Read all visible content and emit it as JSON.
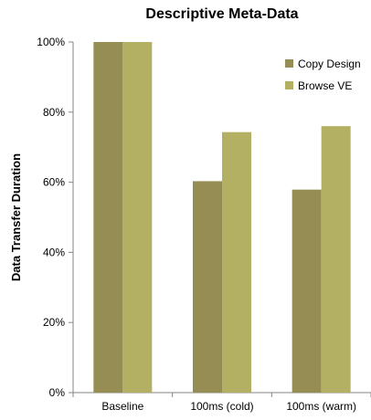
{
  "chart_data": {
    "type": "bar",
    "title": "Descriptive Meta-Data",
    "xlabel": "",
    "ylabel": "Data Transfer Duration",
    "categories": [
      "Baseline",
      "100ms (cold)",
      "100ms (warm)"
    ],
    "series": [
      {
        "name": "Copy Design",
        "color": "#968d55",
        "values": [
          100,
          60.3,
          57.9
        ]
      },
      {
        "name": "Browse VE",
        "color": "#b4b063",
        "values": [
          100,
          74.3,
          76.0
        ]
      }
    ],
    "ylim": [
      0,
      100
    ],
    "yticks": [
      0,
      20,
      40,
      60,
      80,
      100
    ],
    "ytick_labels": [
      "0%",
      "20%",
      "40%",
      "60%",
      "80%",
      "100%"
    ],
    "grid": false,
    "legend_position": "top-right"
  }
}
